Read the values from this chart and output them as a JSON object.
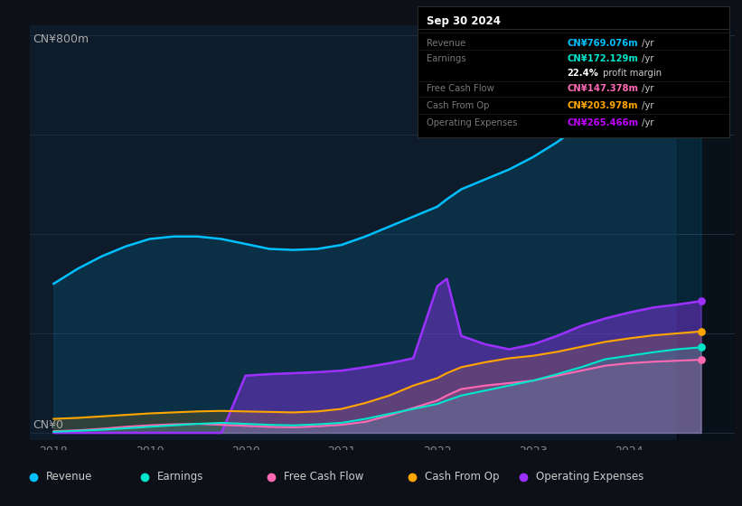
{
  "bg_color": "#0d1117",
  "plot_bg_color": "#0d1b2a",
  "ylabel": "CN¥800m",
  "y0_label": "CN¥0",
  "tooltip": {
    "title": "Sep 30 2024",
    "rows": [
      {
        "label": "Revenue",
        "value": "CN¥769.076m",
        "suffix": " /yr",
        "color": "#00bfff"
      },
      {
        "label": "Earnings",
        "value": "CN¥172.129m",
        "suffix": " /yr",
        "color": "#00e5cc"
      },
      {
        "label": "",
        "value": "22.4%",
        "suffix": " profit margin",
        "color": "#ffffff"
      },
      {
        "label": "Free Cash Flow",
        "value": "CN¥147.378m",
        "suffix": " /yr",
        "color": "#ff69b4"
      },
      {
        "label": "Cash From Op",
        "value": "CN¥203.978m",
        "suffix": " /yr",
        "color": "#ffa500"
      },
      {
        "label": "Operating Expenses",
        "value": "CN¥265.466m",
        "suffix": " /yr",
        "color": "#bf00ff"
      }
    ]
  },
  "x_years": [
    2018.0,
    2018.25,
    2018.5,
    2018.75,
    2019.0,
    2019.25,
    2019.5,
    2019.75,
    2020.0,
    2020.25,
    2020.5,
    2020.75,
    2021.0,
    2021.25,
    2021.5,
    2021.75,
    2022.0,
    2022.1,
    2022.25,
    2022.5,
    2022.75,
    2023.0,
    2023.25,
    2023.5,
    2023.75,
    2024.0,
    2024.25,
    2024.5,
    2024.75
  ],
  "revenue": [
    300,
    330,
    355,
    375,
    390,
    395,
    395,
    390,
    380,
    370,
    368,
    370,
    378,
    395,
    415,
    435,
    455,
    470,
    490,
    510,
    530,
    555,
    585,
    620,
    660,
    700,
    730,
    755,
    769
  ],
  "earnings": [
    2,
    4,
    6,
    9,
    12,
    15,
    18,
    20,
    18,
    16,
    15,
    17,
    20,
    28,
    38,
    48,
    58,
    65,
    75,
    85,
    95,
    105,
    118,
    132,
    148,
    155,
    162,
    168,
    172
  ],
  "free_cash_flow": [
    3,
    5,
    8,
    12,
    15,
    17,
    18,
    16,
    14,
    12,
    11,
    13,
    16,
    22,
    35,
    50,
    65,
    75,
    88,
    95,
    100,
    105,
    115,
    125,
    135,
    140,
    143,
    145,
    147
  ],
  "cash_from_op": [
    28,
    30,
    33,
    36,
    39,
    41,
    43,
    44,
    43,
    42,
    41,
    43,
    48,
    60,
    75,
    95,
    110,
    120,
    132,
    142,
    150,
    155,
    163,
    173,
    183,
    190,
    196,
    200,
    204
  ],
  "op_expenses": [
    0,
    0,
    0,
    0,
    0,
    0,
    0,
    0,
    115,
    118,
    120,
    122,
    125,
    132,
    140,
    150,
    295,
    310,
    195,
    178,
    168,
    178,
    195,
    215,
    230,
    242,
    252,
    258,
    265
  ],
  "revenue_color": "#00bfff",
  "earnings_color": "#00e5cc",
  "fcf_color": "#ff69b4",
  "cashop_color": "#ffa500",
  "opex_color": "#9b30ff",
  "xmin": 2017.75,
  "xmax": 2025.1,
  "ymin": -15,
  "ymax": 820,
  "xticks": [
    2018,
    2019,
    2020,
    2021,
    2022,
    2023,
    2024
  ],
  "grid_y": [
    0,
    200,
    400,
    600,
    800
  ],
  "highlight_x_start": 2024.5,
  "legend_entries": [
    {
      "label": "Revenue",
      "color": "#00bfff"
    },
    {
      "label": "Earnings",
      "color": "#00e5cc"
    },
    {
      "label": "Free Cash Flow",
      "color": "#ff69b4"
    },
    {
      "label": "Cash From Op",
      "color": "#ffa500"
    },
    {
      "label": "Operating Expenses",
      "color": "#9b30ff"
    }
  ]
}
